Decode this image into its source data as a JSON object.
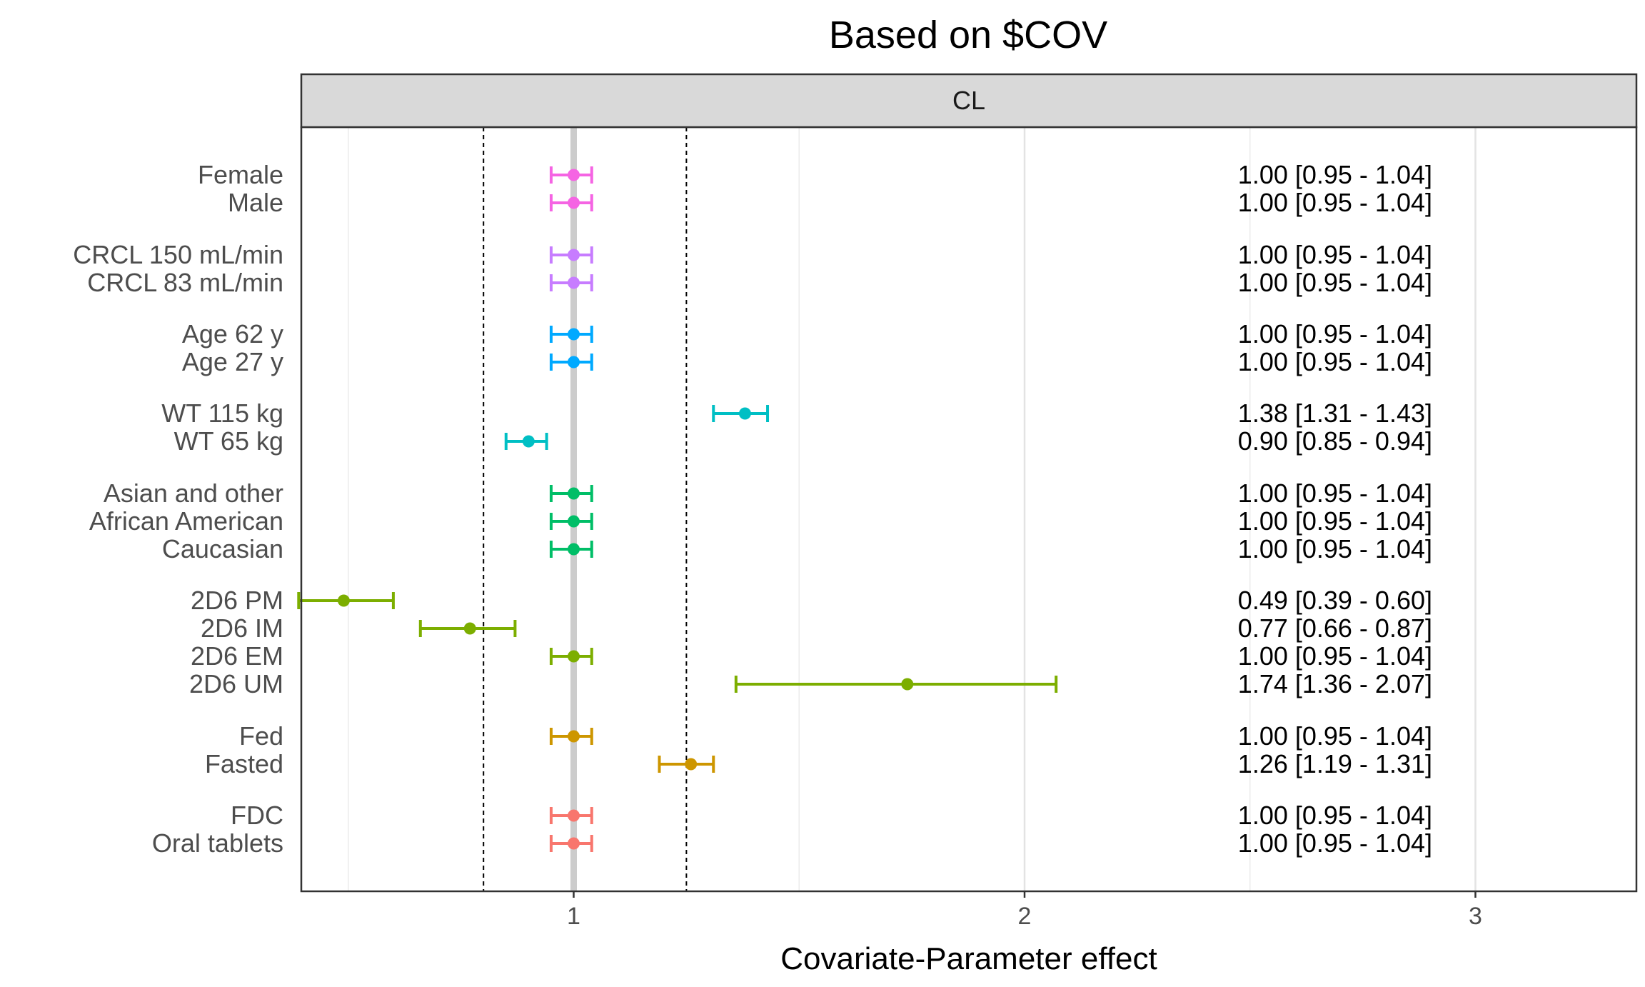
{
  "chart_data": {
    "type": "forest",
    "title": "Based on $COV",
    "facet": "CL",
    "xlabel": "Covariate-Parameter effect",
    "xlim": [
      0.34,
      3.24
    ],
    "xticks": [
      1,
      2,
      3
    ],
    "x_gridlines_minor": [
      0.5,
      1.5,
      2.5
    ],
    "reference_line": 1,
    "dashed_lines": [
      0.8,
      1.25
    ],
    "grid": true,
    "rows": [
      {
        "label": "Female",
        "estimate": 1.0,
        "lower": 0.95,
        "upper": 1.04,
        "annotation": "1.00 [0.95 - 1.04]",
        "color": "#F564E3"
      },
      {
        "label": "Male",
        "estimate": 1.0,
        "lower": 0.95,
        "upper": 1.04,
        "annotation": "1.00 [0.95 - 1.04]",
        "color": "#F564E3"
      },
      {
        "label": "CRCL 150 mL/min",
        "estimate": 1.0,
        "lower": 0.95,
        "upper": 1.04,
        "annotation": "1.00 [0.95 - 1.04]",
        "color": "#C77CFF"
      },
      {
        "label": "CRCL 83 mL/min",
        "estimate": 1.0,
        "lower": 0.95,
        "upper": 1.04,
        "annotation": "1.00 [0.95 - 1.04]",
        "color": "#C77CFF"
      },
      {
        "label": "Age 62 y",
        "estimate": 1.0,
        "lower": 0.95,
        "upper": 1.04,
        "annotation": "1.00 [0.95 - 1.04]",
        "color": "#00A9FF"
      },
      {
        "label": "Age 27 y",
        "estimate": 1.0,
        "lower": 0.95,
        "upper": 1.04,
        "annotation": "1.00 [0.95 - 1.04]",
        "color": "#00A9FF"
      },
      {
        "label": "WT 115 kg",
        "estimate": 1.38,
        "lower": 1.31,
        "upper": 1.43,
        "annotation": "1.38 [1.31 - 1.43]",
        "color": "#00BFC4"
      },
      {
        "label": "WT 65 kg",
        "estimate": 0.9,
        "lower": 0.85,
        "upper": 0.94,
        "annotation": "0.90 [0.85 - 0.94]",
        "color": "#00BFC4"
      },
      {
        "label": "Asian and other",
        "estimate": 1.0,
        "lower": 0.95,
        "upper": 1.04,
        "annotation": "1.00 [0.95 - 1.04]",
        "color": "#00BE67"
      },
      {
        "label": "African American",
        "estimate": 1.0,
        "lower": 0.95,
        "upper": 1.04,
        "annotation": "1.00 [0.95 - 1.04]",
        "color": "#00BE67"
      },
      {
        "label": "Caucasian",
        "estimate": 1.0,
        "lower": 0.95,
        "upper": 1.04,
        "annotation": "1.00 [0.95 - 1.04]",
        "color": "#00BE67"
      },
      {
        "label": "2D6 PM",
        "estimate": 0.49,
        "lower": 0.39,
        "upper": 0.6,
        "annotation": "0.49 [0.39 - 0.60]",
        "color": "#7CAE00"
      },
      {
        "label": "2D6 IM",
        "estimate": 0.77,
        "lower": 0.66,
        "upper": 0.87,
        "annotation": "0.77 [0.66 - 0.87]",
        "color": "#7CAE00"
      },
      {
        "label": "2D6 EM",
        "estimate": 1.0,
        "lower": 0.95,
        "upper": 1.04,
        "annotation": "1.00 [0.95 - 1.04]",
        "color": "#7CAE00"
      },
      {
        "label": "2D6 UM",
        "estimate": 1.74,
        "lower": 1.36,
        "upper": 2.07,
        "annotation": "1.74 [1.36 - 2.07]",
        "color": "#7CAE00"
      },
      {
        "label": "Fed",
        "estimate": 1.0,
        "lower": 0.95,
        "upper": 1.04,
        "annotation": "1.00 [0.95 - 1.04]",
        "color": "#CD9600"
      },
      {
        "label": "Fasted",
        "estimate": 1.26,
        "lower": 1.19,
        "upper": 1.31,
        "annotation": "1.26 [1.19 - 1.31]",
        "color": "#CD9600"
      },
      {
        "label": "FDC",
        "estimate": 1.0,
        "lower": 0.95,
        "upper": 1.04,
        "annotation": "1.00 [0.95 - 1.04]",
        "color": "#F8766D"
      },
      {
        "label": "Oral tablets",
        "estimate": 1.0,
        "lower": 0.95,
        "upper": 1.04,
        "annotation": "1.00 [0.95 - 1.04]",
        "color": "#F8766D"
      }
    ]
  }
}
